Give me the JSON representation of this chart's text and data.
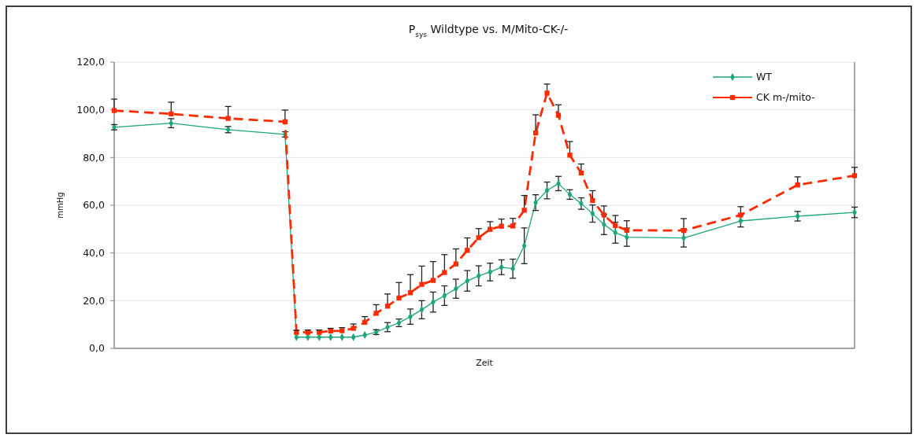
{
  "chart_data": {
    "type": "line",
    "title": "P$_{sys}$ Wildtype vs. M/Mito-CK-/-",
    "xlabel": "Zeit",
    "ylabel": "mmHg",
    "categories": [
      null,
      null,
      null,
      null,
      null,
      null,
      null,
      null,
      null,
      null,
      null,
      null,
      null,
      null,
      null,
      null,
      null,
      null,
      null,
      null,
      null,
      null,
      null,
      null,
      null,
      null,
      null,
      null,
      null,
      null,
      null,
      null,
      null,
      null,
      null,
      null,
      null,
      null,
      null,
      null,
      null,
      null,
      null,
      null,
      null,
      null,
      null,
      null,
      null,
      null,
      null,
      null,
      null,
      null,
      null,
      null,
      null,
      null,
      null,
      null,
      null,
      null,
      null,
      null,
      null,
      null
    ],
    "ylim": [
      0,
      120
    ],
    "yticks": [
      {
        "value": 0,
        "label": "0,0"
      },
      {
        "value": 20,
        "label": "20,0"
      },
      {
        "value": 40,
        "label": "40,0"
      },
      {
        "value": 60,
        "label": "60,0"
      },
      {
        "value": 80,
        "label": "80,0"
      },
      {
        "value": 100,
        "label": "100,0"
      },
      {
        "value": 120,
        "label": "120,0"
      }
    ],
    "grid": "y",
    "legend": "top right",
    "tick_labels": "y",
    "series": [
      {
        "name": "WT",
        "color": "#1ea57a",
        "marker": "diamond",
        "line_style": "solid",
        "values": [
          92.7,
          null,
          null,
          null,
          null,
          94.4,
          null,
          null,
          null,
          null,
          91.7,
          null,
          null,
          null,
          null,
          89.7,
          4.7,
          4.7,
          4.7,
          4.7,
          4.7,
          4.7,
          5.6,
          6.8,
          8.9,
          10.7,
          13.3,
          16.2,
          19.4,
          22.1,
          25.0,
          28.3,
          30.4,
          32.0,
          34.0,
          33.4,
          43.0,
          61.1,
          66.2,
          69.1,
          64.5,
          60.7,
          56.5,
          51.9,
          48.5,
          46.6,
          null,
          null,
          null,
          null,
          46.3,
          null,
          null,
          null,
          null,
          53.4,
          null,
          null,
          null,
          null,
          55.4,
          null,
          null,
          null,
          null,
          57.0
        ],
        "errors": [
          1.1,
          null,
          null,
          null,
          null,
          1.9,
          null,
          null,
          null,
          null,
          1.3,
          null,
          null,
          null,
          null,
          1.1,
          null,
          null,
          null,
          null,
          null,
          null,
          null,
          1.0,
          1.9,
          1.6,
          3.2,
          3.8,
          4.2,
          4.1,
          4.0,
          4.3,
          4.2,
          3.7,
          3.1,
          4.0,
          7.5,
          3.3,
          3.5,
          3.0,
          2.0,
          2.4,
          3.6,
          4.2,
          4.4,
          3.8,
          null,
          null,
          null,
          null,
          3.8,
          null,
          null,
          null,
          null,
          2.5,
          null,
          null,
          null,
          null,
          2.0,
          null,
          null,
          null,
          null,
          2.2
        ]
      },
      {
        "name": "CK m-/mito-",
        "color": "#ff2a00",
        "marker": "square",
        "line_style": "dashed",
        "values": [
          99.7,
          null,
          null,
          null,
          null,
          98.3,
          null,
          null,
          null,
          null,
          96.4,
          null,
          null,
          null,
          null,
          95.0,
          6.7,
          6.7,
          6.7,
          7.3,
          7.4,
          8.4,
          10.9,
          14.7,
          17.7,
          21.1,
          23.3,
          26.8,
          28.5,
          31.8,
          35.4,
          41.1,
          46.4,
          49.9,
          51.2,
          51.3,
          57.9,
          90.3,
          107.0,
          97.7,
          81.0,
          73.5,
          62.0,
          55.9,
          51.5,
          49.5,
          null,
          null,
          null,
          null,
          49.4,
          null,
          null,
          null,
          null,
          55.9,
          null,
          null,
          null,
          null,
          68.5,
          null,
          null,
          null,
          null,
          72.4
        ],
        "errors": [
          [
            99.7,
            104.5
          ],
          null,
          null,
          null,
          null,
          [
            98.3,
            103.2
          ],
          null,
          null,
          null,
          null,
          [
            96.4,
            101.4
          ],
          null,
          null,
          null,
          null,
          [
            95.0,
            99.9
          ],
          [
            6.7,
            7.6
          ],
          [
            6.7,
            7.7
          ],
          [
            6.7,
            7.7
          ],
          [
            7.3,
            8.4
          ],
          [
            7.4,
            8.7
          ],
          [
            8.4,
            10.2
          ],
          [
            10.9,
            13.3
          ],
          [
            14.7,
            18.3
          ],
          [
            17.7,
            22.8
          ],
          [
            21.1,
            27.6
          ],
          [
            23.3,
            30.9
          ],
          [
            26.8,
            34.5
          ],
          [
            28.5,
            36.4
          ],
          [
            31.8,
            39.3
          ],
          [
            35.4,
            41.7
          ],
          [
            41.1,
            46.3
          ],
          [
            46.4,
            50.2
          ],
          [
            49.9,
            53.1
          ],
          [
            51.2,
            54.2
          ],
          [
            51.3,
            54.5
          ],
          [
            57.9,
            64.1
          ],
          [
            90.3,
            97.9
          ],
          [
            107.0,
            110.8
          ],
          [
            97.7,
            102.1
          ],
          [
            81.0,
            86.7
          ],
          [
            73.5,
            77.3
          ],
          [
            62.0,
            66.1
          ],
          [
            55.9,
            59.7
          ],
          [
            51.5,
            55.7
          ],
          [
            49.5,
            53.5
          ],
          null,
          null,
          null,
          null,
          [
            49.4,
            54.4
          ],
          null,
          null,
          null,
          null,
          [
            55.9,
            59.4
          ],
          null,
          null,
          null,
          null,
          [
            68.5,
            71.9
          ],
          null,
          null,
          null,
          null,
          [
            72.4,
            75.9
          ]
        ]
      }
    ]
  }
}
